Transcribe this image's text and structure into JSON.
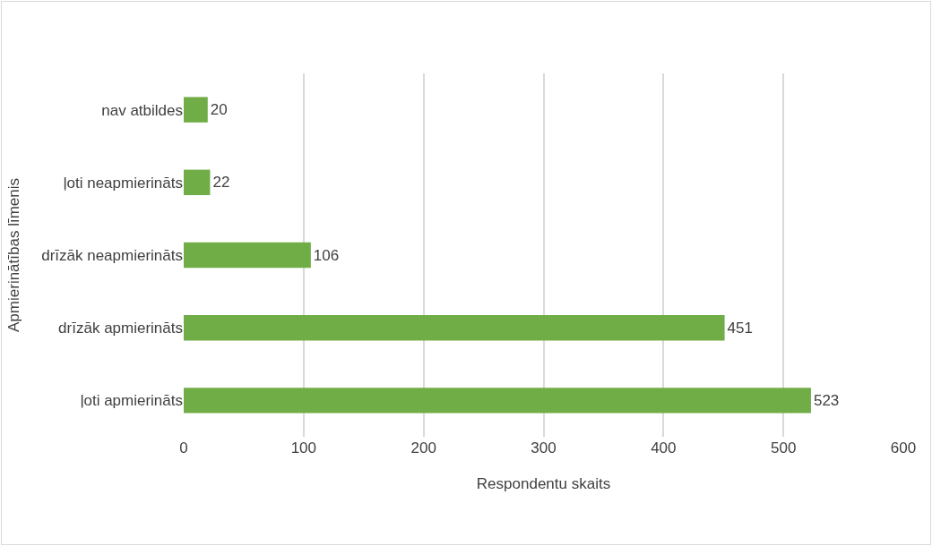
{
  "chart_data": {
    "type": "bar",
    "orientation": "horizontal",
    "xlabel": "Respondentu skaits",
    "ylabel": "Apmierinātības līmenis",
    "categories": [
      "nav atbildes",
      "ļoti neapmierināts",
      "drīzāk neapmierināts",
      "drīzāk apmierināts",
      "ļoti apmierināts"
    ],
    "values": [
      20,
      22,
      106,
      451,
      523
    ],
    "color": "#70ad47",
    "xlim": [
      0,
      600
    ],
    "xticks": [
      0,
      100,
      200,
      300,
      400,
      500,
      600
    ],
    "grid": "x",
    "data_labels": true
  }
}
